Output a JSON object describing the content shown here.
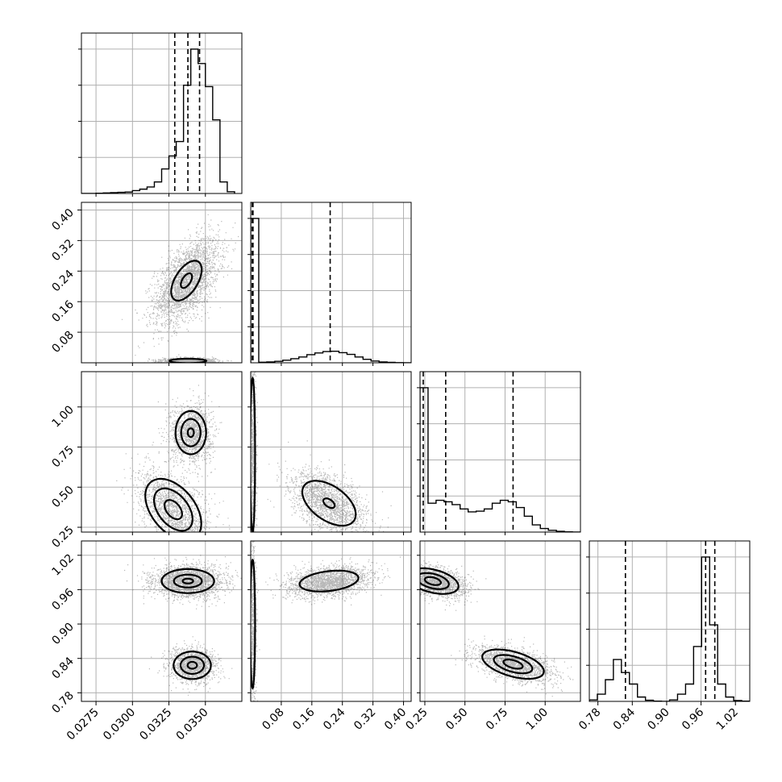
{
  "chart_data": {
    "type": "corner",
    "grid": true,
    "parameters": [
      {
        "range": [
          0.0265,
          0.0375
        ],
        "ticks": [
          0.0275,
          0.03,
          0.0325,
          0.035
        ],
        "tick_labels": [
          "0.0275",
          "0.0300",
          "0.0325",
          "0.0350"
        ],
        "quantiles": [
          0.0329,
          0.0338,
          0.0346
        ],
        "hist": {
          "edges": [
            0.0265,
            0.027,
            0.0275,
            0.028,
            0.0285,
            0.029,
            0.0295,
            0.03,
            0.0305,
            0.031,
            0.0315,
            0.032,
            0.0325,
            0.033,
            0.0335,
            0.034,
            0.0345,
            0.035,
            0.0355,
            0.036,
            0.0365,
            0.037
          ],
          "counts": [
            0,
            0,
            0.002,
            0.004,
            0.006,
            0.008,
            0.01,
            0.02,
            0.03,
            0.045,
            0.08,
            0.17,
            0.26,
            0.36,
            0.75,
            1.0,
            0.9,
            0.74,
            0.51,
            0.08,
            0.012
          ]
        }
      },
      {
        "range": [
          0.0,
          0.42
        ],
        "ticks": [
          0.08,
          0.16,
          0.24,
          0.32,
          0.4
        ],
        "tick_labels": [
          "0.08",
          "0.16",
          "0.24",
          "0.32",
          "0.40"
        ],
        "quantiles": [
          0.004,
          0.006,
          0.208
        ],
        "hist": {
          "edges": [
            0.0,
            0.021,
            0.042,
            0.063,
            0.084,
            0.105,
            0.126,
            0.147,
            0.168,
            0.189,
            0.21,
            0.231,
            0.252,
            0.273,
            0.294,
            0.315,
            0.336,
            0.357,
            0.378,
            0.399,
            0.42
          ],
          "counts": [
            1.0,
            0.004,
            0.006,
            0.01,
            0.018,
            0.028,
            0.04,
            0.056,
            0.068,
            0.078,
            0.08,
            0.07,
            0.058,
            0.04,
            0.024,
            0.012,
            0.006,
            0.003,
            0.001,
            0.0
          ]
        }
      },
      {
        "range": [
          0.22,
          1.22
        ],
        "ticks": [
          0.25,
          0.5,
          0.75,
          1.0
        ],
        "tick_labels": [
          "0.25",
          "0.50",
          "0.75",
          "1.00"
        ],
        "quantiles": [
          0.24,
          0.38,
          0.8
        ],
        "hist": {
          "edges": [
            0.22,
            0.27,
            0.32,
            0.37,
            0.42,
            0.47,
            0.52,
            0.57,
            0.62,
            0.67,
            0.72,
            0.77,
            0.82,
            0.87,
            0.92,
            0.97,
            1.02,
            1.07,
            1.12,
            1.17,
            1.22
          ],
          "counts": [
            1.0,
            0.2,
            0.22,
            0.21,
            0.19,
            0.16,
            0.14,
            0.145,
            0.16,
            0.2,
            0.22,
            0.21,
            0.17,
            0.11,
            0.05,
            0.025,
            0.012,
            0.005,
            0.002,
            0.0
          ]
        }
      },
      {
        "range": [
          0.765,
          1.045
        ],
        "ticks": [
          0.78,
          0.84,
          0.9,
          0.96,
          1.02
        ],
        "tick_labels": [
          "0.78",
          "0.84",
          "0.90",
          "0.96",
          "1.02"
        ],
        "quantiles": [
          0.828,
          0.968,
          0.984
        ],
        "hist": {
          "edges": [
            0.765,
            0.779,
            0.793,
            0.807,
            0.821,
            0.835,
            0.849,
            0.863,
            0.877,
            0.891,
            0.905,
            0.919,
            0.933,
            0.947,
            0.961,
            0.975,
            0.989,
            1.003,
            1.017,
            1.031,
            1.045
          ],
          "counts": [
            0.01,
            0.05,
            0.15,
            0.29,
            0.2,
            0.12,
            0.03,
            0.008,
            0.002,
            0.0,
            0.01,
            0.05,
            0.12,
            0.38,
            1.0,
            0.53,
            0.12,
            0.03,
            0.006,
            0.002
          ]
        }
      }
    ],
    "pairs": [
      {
        "x": 0,
        "y": 1,
        "modes": [
          {
            "mx": 0.0337,
            "my": 0.215,
            "sx": 0.0011,
            "sy": 0.055,
            "rho": 0.55,
            "n": 2600,
            "levels": [
              0.35,
              0.95
            ]
          },
          {
            "mx": 0.0338,
            "my": 0.005,
            "sx": 0.0009,
            "sy": 0.004,
            "rho": 0.0,
            "n": 1500,
            "levels": [
              1.4
            ]
          }
        ]
      },
      {
        "x": 0,
        "y": 2,
        "modes": [
          {
            "mx": 0.034,
            "my": 0.84,
            "sx": 0.0007,
            "sy": 0.09,
            "rho": 0.0,
            "n": 1400,
            "levels": [
              0.3,
              0.95,
              1.5
            ]
          },
          {
            "mx": 0.0328,
            "my": 0.36,
            "sx": 0.0012,
            "sy": 0.12,
            "rho": -0.45,
            "n": 1700,
            "levels": [
              0.5,
              1.1,
              1.6
            ]
          }
        ]
      },
      {
        "x": 1,
        "y": 2,
        "modes": [
          {
            "mx": 0.205,
            "my": 0.4,
            "sx": 0.05,
            "sy": 0.1,
            "rho": -0.5,
            "n": 1800,
            "levels": [
              0.3,
              1.4
            ]
          },
          {
            "mx": 0.005,
            "my": 0.7,
            "sx": 0.004,
            "sy": 0.3,
            "rho": 0.0,
            "n": 1000,
            "levels": [
              1.6
            ]
          }
        ]
      },
      {
        "x": 0,
        "y": 3,
        "modes": [
          {
            "mx": 0.0338,
            "my": 0.975,
            "sx": 0.0012,
            "sy": 0.014,
            "rho": 0.0,
            "n": 2200,
            "levels": [
              0.3,
              0.8,
              1.5
            ]
          },
          {
            "mx": 0.0341,
            "my": 0.828,
            "sx": 0.0008,
            "sy": 0.015,
            "rho": 0.0,
            "n": 1400,
            "levels": [
              0.4,
              1.0,
              1.6
            ]
          }
        ]
      },
      {
        "x": 1,
        "y": 3,
        "modes": [
          {
            "mx": 0.205,
            "my": 0.975,
            "sx": 0.055,
            "sy": 0.013,
            "rho": 0.3,
            "n": 2000,
            "levels": [
              1.4
            ]
          },
          {
            "mx": 0.005,
            "my": 0.9,
            "sx": 0.004,
            "sy": 0.07,
            "rho": 0.0,
            "n": 900,
            "levels": [
              1.6
            ]
          }
        ]
      },
      {
        "x": 2,
        "y": 3,
        "modes": [
          {
            "mx": 0.3,
            "my": 0.975,
            "sx": 0.1,
            "sy": 0.014,
            "rho": -0.4,
            "n": 1800,
            "levels": [
              0.5,
              1.0,
              1.6
            ]
          },
          {
            "mx": 0.8,
            "my": 0.83,
            "sx": 0.12,
            "sy": 0.016,
            "rho": -0.5,
            "n": 1700,
            "levels": [
              0.5,
              1.0,
              1.6
            ]
          }
        ]
      }
    ]
  }
}
